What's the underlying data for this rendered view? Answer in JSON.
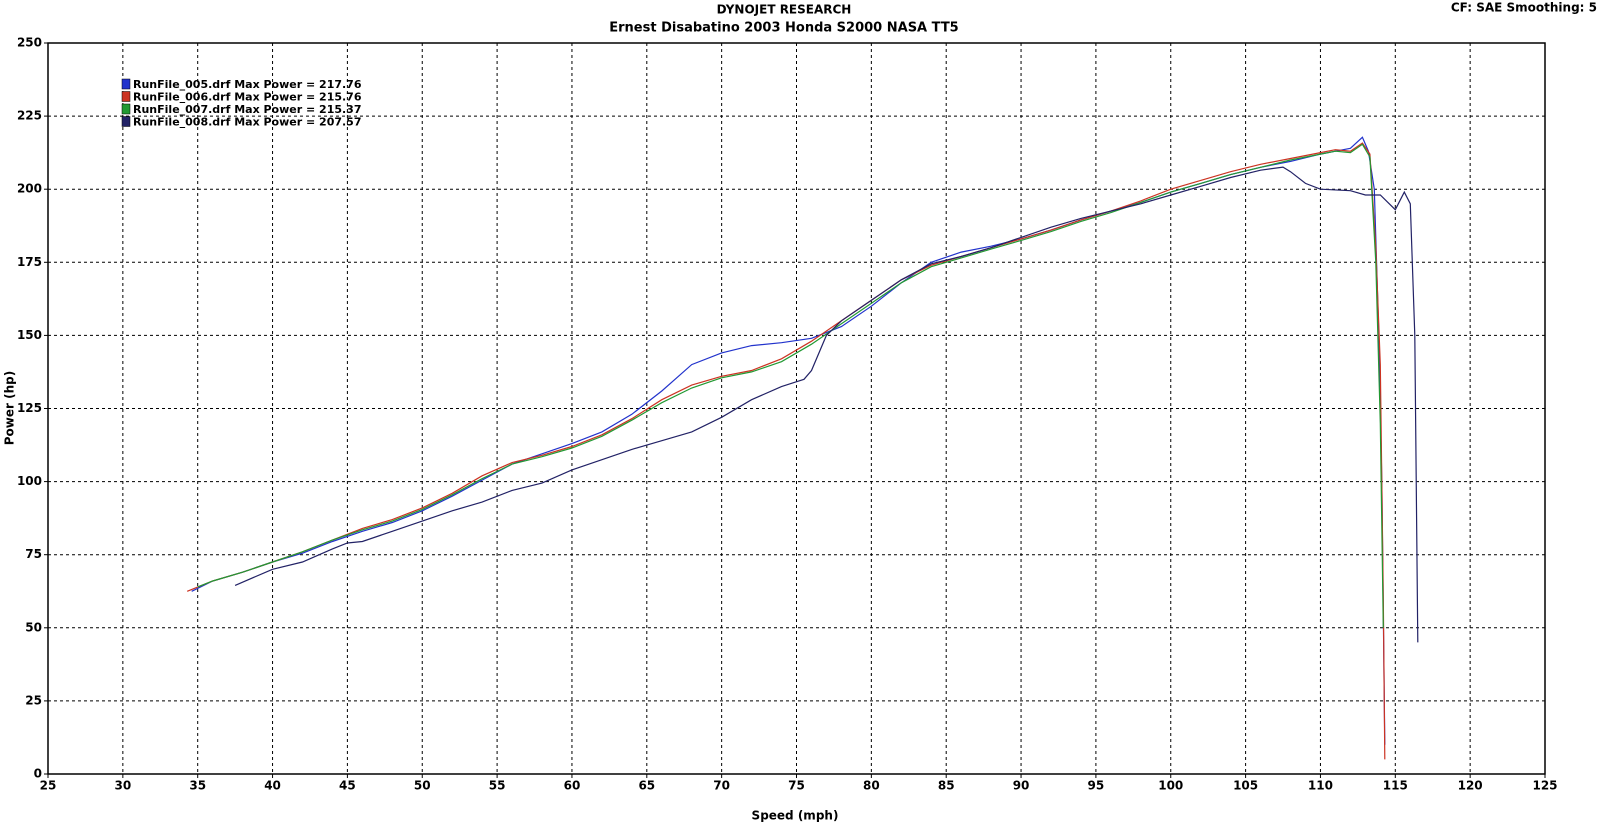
{
  "chart_data": {
    "type": "line",
    "title": "DYNOJET RESEARCH",
    "subtitle": "Ernest Disabatino 2003 Honda S2000 NASA TT5",
    "annotation": "CF: SAE  Smoothing: 5",
    "x_label": "Speed (mph)",
    "y_label": "Power (hp)",
    "xlim": [
      25,
      125
    ],
    "xticks": [
      25,
      30,
      35,
      40,
      45,
      50,
      55,
      60,
      65,
      70,
      75,
      80,
      85,
      90,
      95,
      100,
      105,
      110,
      115,
      120,
      125
    ],
    "ylim": [
      0,
      250
    ],
    "yticks": [
      0,
      25,
      50,
      75,
      100,
      125,
      150,
      175,
      200,
      225,
      250
    ],
    "grid": true,
    "legend": "upper left",
    "series": [
      {
        "name": "RunFile_005.drf Max Power = 217.76",
        "color": "#2233cc",
        "x": [
          34.6,
          36,
          38,
          40,
          42,
          44,
          46,
          48,
          50,
          52,
          54,
          56,
          58,
          60,
          62,
          64,
          66,
          68,
          70,
          72,
          74,
          76,
          78,
          80,
          82,
          84,
          86,
          88,
          90,
          92,
          94,
          96,
          98,
          100,
          102,
          104,
          106,
          108,
          110,
          111,
          112,
          112.8,
          113.2,
          113.6,
          113.9,
          114.1,
          114.3
        ],
        "values": [
          62.5,
          66,
          69,
          72.5,
          75.5,
          79.5,
          83,
          86,
          90,
          95,
          100.5,
          106,
          109.5,
          113,
          117,
          123,
          131,
          140,
          144,
          146.5,
          147.5,
          149,
          153,
          160,
          168,
          175,
          178.5,
          180.5,
          183,
          186,
          189.5,
          192.5,
          195.5,
          199,
          202,
          205,
          207.5,
          209.5,
          212,
          213,
          214,
          217.76,
          213,
          200,
          150,
          100,
          10
        ]
      },
      {
        "name": "RunFile_006.drf Max Power = 215.76",
        "color": "#cc3322",
        "x": [
          34.3,
          36,
          38,
          40,
          42,
          44,
          46,
          48,
          50,
          52,
          54,
          56,
          58,
          60,
          62,
          64,
          66,
          68,
          70,
          72,
          74,
          76,
          78,
          80,
          82,
          84,
          86,
          88,
          90,
          92,
          94,
          96,
          98,
          100,
          102,
          104,
          106,
          108,
          110,
          111,
          112,
          112.8,
          113.3,
          113.7,
          114,
          114.2,
          114.3
        ],
        "values": [
          62.5,
          66,
          69,
          72.5,
          76,
          80,
          84,
          87,
          91,
          96,
          102,
          106.5,
          109,
          112,
          116,
          121.5,
          128,
          133,
          136,
          138,
          142,
          148,
          155,
          162,
          169,
          174,
          177,
          180,
          183,
          186,
          189.5,
          192.5,
          196,
          200,
          203,
          206,
          208.5,
          210.5,
          212.5,
          213.5,
          213,
          215.76,
          212,
          180,
          140,
          60,
          5
        ]
      },
      {
        "name": "RunFile_007.drf Max Power = 215.37",
        "color": "#229933",
        "x": [
          35,
          36,
          38,
          40,
          42,
          44,
          46,
          48,
          50,
          52,
          54,
          56,
          58,
          60,
          62,
          64,
          66,
          68,
          70,
          72,
          74,
          76,
          78,
          80,
          82,
          84,
          86,
          88,
          90,
          92,
          94,
          96,
          98,
          100,
          102,
          104,
          106,
          108,
          110,
          111,
          112,
          112.8,
          113.3,
          113.7,
          114,
          114.2
        ],
        "values": [
          64,
          66,
          69,
          72.5,
          76,
          80,
          83.5,
          86.5,
          90.5,
          95.5,
          101,
          106,
          108.5,
          111.5,
          115.5,
          121,
          127,
          132,
          135.5,
          137.5,
          141,
          147,
          154,
          161,
          168,
          173.5,
          176.5,
          179.5,
          182.5,
          185.5,
          189,
          192,
          195.5,
          199,
          202,
          205,
          207.5,
          210,
          212,
          213,
          212.5,
          215.37,
          211,
          175,
          120,
          50
        ]
      },
      {
        "name": "RunFile_008.drf Max Power = 207.57",
        "color": "#222266",
        "x": [
          37.5,
          40,
          42,
          44,
          45,
          46,
          48,
          50,
          52,
          54,
          56,
          58,
          60,
          62,
          64,
          66,
          68,
          70,
          72,
          74,
          75.5,
          76,
          77,
          78,
          80,
          82,
          84,
          86,
          88,
          90,
          92,
          94,
          96,
          98,
          100,
          102,
          104,
          106,
          107.5,
          108,
          109,
          110,
          112,
          113,
          114,
          115,
          115.6,
          116,
          116.3,
          116.5
        ],
        "values": [
          64.5,
          70,
          72.5,
          77,
          79,
          79.5,
          83,
          86.5,
          90,
          93,
          97,
          99.5,
          104,
          107.5,
          111,
          114,
          117,
          122,
          128,
          132.5,
          135,
          138,
          150,
          155,
          162,
          169,
          174.5,
          177,
          180,
          183.5,
          187,
          190,
          192.5,
          195,
          198,
          201,
          204,
          206.5,
          207.57,
          206,
          202,
          200,
          199.5,
          198,
          198,
          193,
          199,
          195,
          150,
          45
        ]
      }
    ]
  }
}
